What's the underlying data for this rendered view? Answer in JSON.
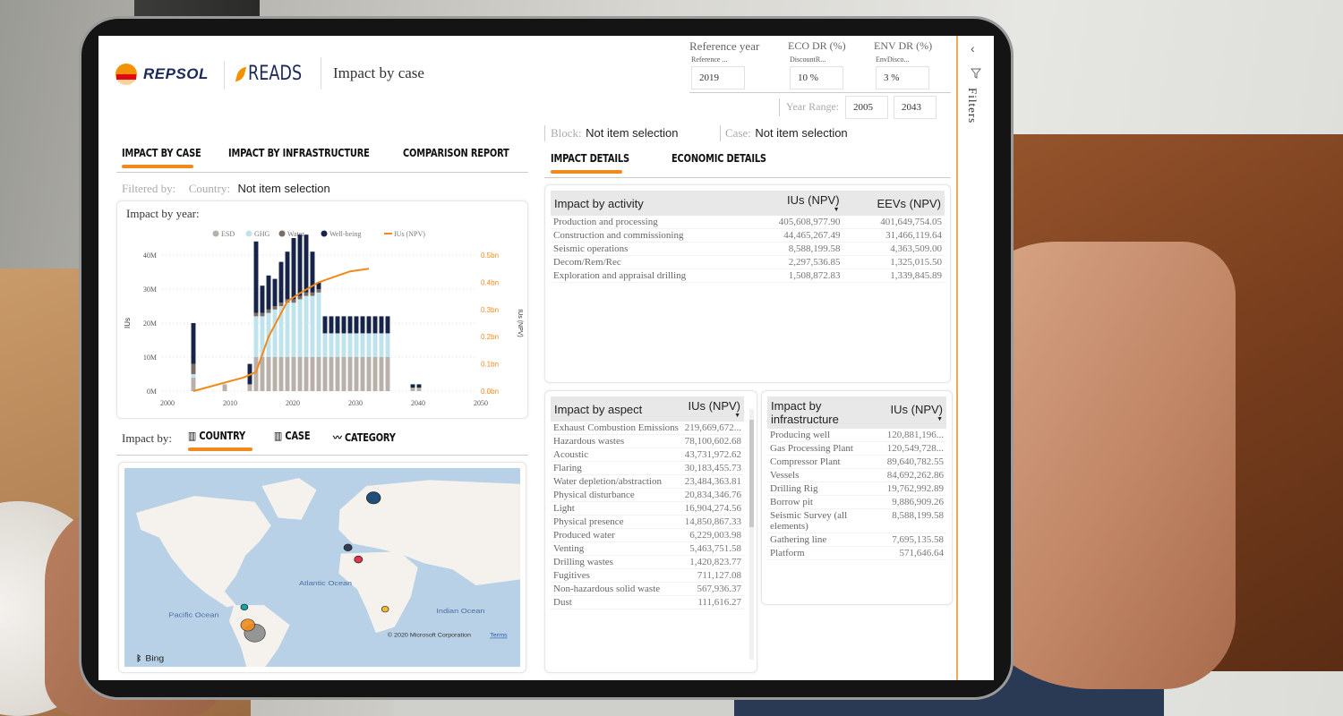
{
  "header": {
    "brand": "REPSOL",
    "app": "READS",
    "title": "Impact by case"
  },
  "filters_top": {
    "reference_year": {
      "label": "Reference year",
      "sublabel": "Reference ...",
      "value": "2019"
    },
    "eco_dr": {
      "label": "ECO DR (%)",
      "sublabel": "DiscountR...",
      "value": "10 %"
    },
    "env_dr": {
      "label": "ENV DR (%)",
      "sublabel": "EnvDisco...",
      "value": "3 %"
    },
    "year_range": {
      "label": "Year Range:",
      "from": "2005",
      "to": "2043"
    }
  },
  "filter_pane": {
    "label": "Filters",
    "collapse_icon": "chevron-left",
    "icon": "funnel"
  },
  "main_tabs": [
    {
      "label": "IMPACT BY CASE",
      "active": true
    },
    {
      "label": "IMPACT BY INFRASTRUCTURE",
      "active": false
    },
    {
      "label": "COMPARISON REPORT",
      "active": false
    }
  ],
  "slicers": {
    "block": {
      "label": "Block:",
      "value": "Not item selection"
    },
    "case": {
      "label": "Case:",
      "value": "Not item selection"
    },
    "filtered_by": "Filtered by:",
    "country": {
      "label": "Country:",
      "value": "Not item selection"
    }
  },
  "chart_section": {
    "title": "Impact by year:"
  },
  "chart_data": {
    "type": "bar",
    "stacked": true,
    "ylabel": "IUs",
    "y2label": "IUs (NPV)",
    "ylim": [
      0,
      40
    ],
    "y_ticks": [
      "0M",
      "10M",
      "20M",
      "30M",
      "40M"
    ],
    "y2lim": [
      0,
      0.5
    ],
    "y2_ticks": [
      "0.0bn",
      "0.1bn",
      "0.2bn",
      "0.3bn",
      "0.4bn",
      "0.5bn"
    ],
    "xlim": [
      2000,
      2050
    ],
    "x_ticks": [
      "2000",
      "2010",
      "2020",
      "2030",
      "2040",
      "2050"
    ],
    "legend": [
      "ESD",
      "GHG",
      "Water",
      "Well-being",
      "IUs (NPV)"
    ],
    "legend_position": "top",
    "grid": true,
    "colors": {
      "ESD": "#b9b0aa",
      "GHG": "#bfe3ec",
      "Water": "#7a6d66",
      "Well-being": "#17244a",
      "IUs (NPV)": "#f08a1c"
    },
    "series": [
      {
        "name": "ESD",
        "x": [
          2005,
          2010,
          2014,
          2015,
          2016,
          2017,
          2018,
          2019,
          2020,
          2021,
          2022,
          2023,
          2024,
          2025,
          2026,
          2027,
          2028,
          2029,
          2030,
          2031,
          2032,
          2033,
          2034,
          2035,
          2036,
          2040,
          2041
        ],
        "values": [
          4,
          2,
          2,
          10,
          10,
          10,
          10,
          10,
          10,
          10,
          10,
          10,
          10,
          10,
          10,
          10,
          10,
          10,
          10,
          10,
          10,
          10,
          10,
          10,
          10,
          1,
          1
        ]
      },
      {
        "name": "GHG",
        "x": [
          2005,
          2010,
          2014,
          2015,
          2016,
          2017,
          2018,
          2019,
          2020,
          2021,
          2022,
          2023,
          2024,
          2025,
          2026,
          2027,
          2028,
          2029,
          2030,
          2031,
          2032,
          2033,
          2034,
          2035,
          2036,
          2040,
          2041
        ],
        "values": [
          1,
          0,
          0,
          12,
          12,
          13,
          14,
          15,
          16,
          16,
          17,
          18,
          18,
          19,
          7,
          7,
          7,
          7,
          7,
          7,
          7,
          7,
          7,
          7,
          7,
          0,
          0
        ]
      },
      {
        "name": "Water",
        "x": [
          2005,
          2010,
          2014,
          2015,
          2016,
          2017,
          2018,
          2019,
          2020,
          2021,
          2022,
          2023,
          2024,
          2025,
          2026,
          2027,
          2028,
          2029,
          2030,
          2031,
          2032,
          2033,
          2034,
          2035,
          2036,
          2040,
          2041
        ],
        "values": [
          3,
          0,
          0,
          1,
          1,
          1,
          1,
          1,
          1,
          1,
          1,
          1,
          1,
          1,
          0,
          0,
          0,
          0,
          0,
          0,
          0,
          0,
          0,
          0,
          0,
          0,
          0
        ]
      },
      {
        "name": "Well-being",
        "x": [
          2005,
          2010,
          2014,
          2015,
          2016,
          2017,
          2018,
          2019,
          2020,
          2021,
          2022,
          2023,
          2024,
          2025,
          2026,
          2027,
          2028,
          2029,
          2030,
          2031,
          2032,
          2033,
          2034,
          2035,
          2036,
          2040,
          2041
        ],
        "values": [
          12,
          0,
          6,
          21,
          8,
          10,
          8,
          12,
          14,
          18,
          18,
          17,
          12,
          2,
          5,
          5,
          5,
          5,
          5,
          5,
          5,
          5,
          5,
          5,
          5,
          1,
          1
        ]
      },
      {
        "name": "IUs (NPV)",
        "type": "line",
        "axis": "right",
        "x": [
          2005,
          2013,
          2015,
          2017,
          2020,
          2022,
          2025,
          2030,
          2033
        ],
        "values": [
          0.0,
          0.05,
          0.07,
          0.2,
          0.33,
          0.36,
          0.4,
          0.44,
          0.45
        ]
      }
    ]
  },
  "impact_by": {
    "label": "Impact by:",
    "tabs": [
      {
        "label": "COUNTRY",
        "icon": "map",
        "active": true
      },
      {
        "label": "CASE",
        "icon": "map",
        "active": false
      },
      {
        "label": "CATEGORY",
        "icon": "line-chart",
        "active": false
      }
    ]
  },
  "map": {
    "labels": {
      "pacific": "Pacific Ocean",
      "atlantic": "Atlantic Ocean",
      "indian": "Indian Ocean"
    },
    "attribution": "© 2020 Microsoft Corporation",
    "terms": "Terms",
    "provider": "Bing",
    "bubble_colors": [
      "#1f4e79",
      "#2f3e55",
      "#e0344c",
      "#13a3a3",
      "#f08a1c",
      "#8c8c8c",
      "#f5b82e"
    ]
  },
  "detail_tabs": [
    {
      "label": "IMPACT DETAILS",
      "active": true
    },
    {
      "label": "ECONOMIC DETAILS",
      "active": false
    }
  ],
  "activity_table": {
    "title": "Impact by activity",
    "columns": [
      "IUs (NPV)",
      "EEVs (NPV)"
    ],
    "rows": [
      {
        "name": "Production and processing",
        "ius": "405,608,977.90",
        "eevs": "401,649,754.05"
      },
      {
        "name": "Construction and commissioning",
        "ius": "44,465,267.49",
        "eevs": "31,466,119.64"
      },
      {
        "name": "Seismic operations",
        "ius": "8,588,199.58",
        "eevs": "4,363,509.00"
      },
      {
        "name": "Decom/Rem/Rec",
        "ius": "2,297,536.85",
        "eevs": "1,325,015.50"
      },
      {
        "name": "Exploration and appraisal drilling",
        "ius": "1,508,872.83",
        "eevs": "1,339,845.89"
      }
    ]
  },
  "aspect_table": {
    "title": "Impact by aspect",
    "columns": [
      "IUs (NPV)"
    ],
    "rows": [
      {
        "name": "Exhaust Combustion Emissions",
        "ius": "219,669,672..."
      },
      {
        "name": "Hazardous wastes",
        "ius": "78,100,602.68"
      },
      {
        "name": "Acoustic",
        "ius": "43,731,972.62"
      },
      {
        "name": "Flaring",
        "ius": "30,183,455.73"
      },
      {
        "name": "Water depletion/abstraction",
        "ius": "23,484,363.81"
      },
      {
        "name": "Physical disturbance",
        "ius": "20,834,346.76"
      },
      {
        "name": "Light",
        "ius": "16,904,274.56"
      },
      {
        "name": "Physical presence",
        "ius": "14,850,867.33"
      },
      {
        "name": "Produced water",
        "ius": "6,229,003.98"
      },
      {
        "name": "Venting",
        "ius": "5,463,751.58"
      },
      {
        "name": "Drilling wastes",
        "ius": "1,420,823.77"
      },
      {
        "name": "Fugitives",
        "ius": "711,127.08"
      },
      {
        "name": "Non-hazardous solid waste",
        "ius": "567,936.37"
      },
      {
        "name": "Dust",
        "ius": "111,616.27"
      }
    ]
  },
  "infrastructure_table": {
    "title": "Impact by infrastructure",
    "columns": [
      "IUs (NPV)"
    ],
    "rows": [
      {
        "name": "Producing well",
        "ius": "120,881,196..."
      },
      {
        "name": "Gas Processing Plant",
        "ius": "120,549,728..."
      },
      {
        "name": "Compressor Plant",
        "ius": "89,640,782.55"
      },
      {
        "name": "Vessels",
        "ius": "84,692,262.86"
      },
      {
        "name": "Drilling Rig",
        "ius": "19,762,992.89"
      },
      {
        "name": "Borrow pit",
        "ius": "9,886,909.26"
      },
      {
        "name": "Seismic Survey (all elements)",
        "ius": "8,588,199.58"
      },
      {
        "name": "Gathering line",
        "ius": "7,695,135.58"
      },
      {
        "name": "Platform",
        "ius": "571,646.64"
      }
    ]
  },
  "colors": {
    "accent": "#f08a1c",
    "brand_navy": "#1b2a5a",
    "header_gray": "#e8e8e8"
  }
}
